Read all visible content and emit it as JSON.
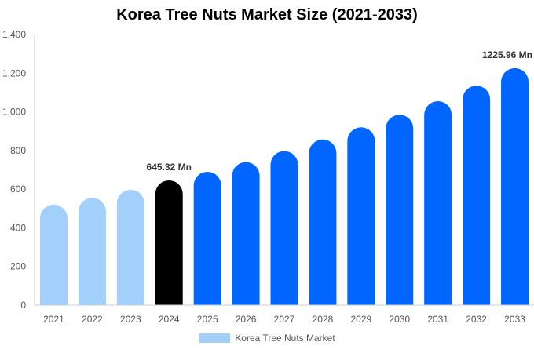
{
  "chart_data": {
    "type": "bar",
    "title": "Korea Tree Nuts Market Size (2021-2033)",
    "categories": [
      "2021",
      "2022",
      "2023",
      "2024",
      "2025",
      "2026",
      "2027",
      "2028",
      "2029",
      "2030",
      "2031",
      "2032",
      "2033"
    ],
    "series": [
      {
        "name": "Korea Tree Nuts Market",
        "values": [
          520,
          555,
          597,
          645.32,
          690,
          740,
          797,
          857,
          920,
          985,
          1055,
          1135,
          1225.96
        ]
      }
    ],
    "ylim": [
      0,
      1400
    ],
    "yticks": [
      0,
      200,
      400,
      600,
      800,
      1000,
      1200,
      1400
    ],
    "ytick_labels": [
      "0",
      "200",
      "400",
      "600",
      "800",
      "1,000",
      "1,200",
      "1,400"
    ],
    "annotations": [
      {
        "category": "2024",
        "text": "645.32 Mn"
      },
      {
        "category": "2033",
        "text": "1225.96 Mn"
      }
    ],
    "bar_colors": {
      "historical": "#a3cffb",
      "base_year": "#000000",
      "forecast": "#0066ff"
    },
    "base_year": "2024",
    "grid": false,
    "legend_position": "bottom-center"
  }
}
